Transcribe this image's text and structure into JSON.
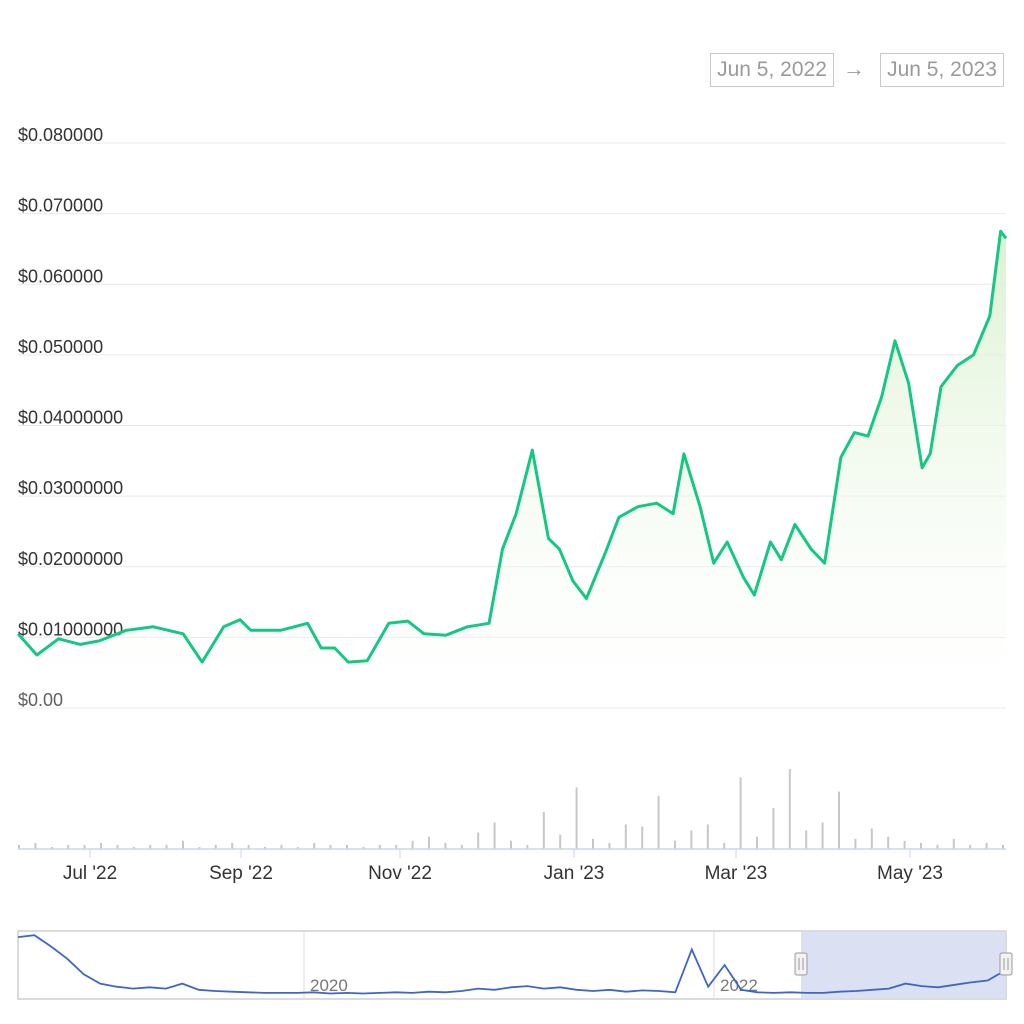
{
  "date_range": {
    "from": "Jun 5, 2022",
    "arrow": "→",
    "to": "Jun 5, 2023"
  },
  "colors": {
    "line": "#16c784",
    "fill": "#e6f6df",
    "navigator_line": "#3f66c5",
    "navigator_mask": "#d5dcf1",
    "grid": "#e9e9e9",
    "volume": "#c7c7c7"
  },
  "chart_data": {
    "type": "line",
    "ylim": [
      0,
      0.08
    ],
    "x_ticks": [
      "Jul '22",
      "Sep '22",
      "Nov '22",
      "Jan '23",
      "Mar '23",
      "May '23"
    ],
    "y_ticks": [
      {
        "value": 0.0,
        "label": "$0.00"
      },
      {
        "value": 0.01,
        "label": "$0.01000000"
      },
      {
        "value": 0.02,
        "label": "$0.02000000"
      },
      {
        "value": 0.03,
        "label": "$0.03000000"
      },
      {
        "value": 0.04,
        "label": "$0.04000000"
      },
      {
        "value": 0.05,
        "label": "$0.050000"
      },
      {
        "value": 0.06,
        "label": "$0.060000"
      },
      {
        "value": 0.07,
        "label": "$0.070000"
      },
      {
        "value": 0.08,
        "label": "$0.080000"
      }
    ],
    "series": [
      {
        "x": [
          "2022-06-05",
          "2022-06-12",
          "2022-06-20",
          "2022-06-28",
          "2022-07-05",
          "2022-07-15",
          "2022-07-25",
          "2022-08-05",
          "2022-08-12",
          "2022-08-20",
          "2022-08-26",
          "2022-08-30",
          "2022-09-10",
          "2022-09-20",
          "2022-09-25",
          "2022-09-30",
          "2022-10-05",
          "2022-10-12",
          "2022-10-20",
          "2022-10-27",
          "2022-11-02",
          "2022-11-10",
          "2022-11-18",
          "2022-11-26",
          "2022-12-01",
          "2022-12-06",
          "2022-12-12",
          "2022-12-18",
          "2022-12-22",
          "2022-12-27",
          "2023-01-01",
          "2023-01-08",
          "2023-01-13",
          "2023-01-20",
          "2023-01-27",
          "2023-02-02",
          "2023-02-06",
          "2023-02-12",
          "2023-02-17",
          "2023-02-22",
          "2023-02-28",
          "2023-03-04",
          "2023-03-10",
          "2023-03-14",
          "2023-03-19",
          "2023-03-25",
          "2023-03-30",
          "2023-04-05",
          "2023-04-10",
          "2023-04-15",
          "2023-04-20",
          "2023-04-25",
          "2023-04-30",
          "2023-05-05",
          "2023-05-08",
          "2023-05-12",
          "2023-05-18",
          "2023-05-24",
          "2023-05-30",
          "2023-06-03",
          "2023-06-05"
        ],
        "y": [
          0.0105,
          0.0075,
          0.0098,
          0.009,
          0.0095,
          0.011,
          0.0115,
          0.0105,
          0.0065,
          0.0115,
          0.0125,
          0.011,
          0.011,
          0.012,
          0.0085,
          0.0085,
          0.0065,
          0.0067,
          0.012,
          0.0123,
          0.0105,
          0.0103,
          0.0115,
          0.012,
          0.0225,
          0.0275,
          0.0365,
          0.024,
          0.0225,
          0.018,
          0.0155,
          0.022,
          0.027,
          0.0285,
          0.029,
          0.0275,
          0.036,
          0.0285,
          0.0205,
          0.0235,
          0.0185,
          0.016,
          0.0235,
          0.021,
          0.026,
          0.0225,
          0.0205,
          0.0355,
          0.039,
          0.0385,
          0.044,
          0.052,
          0.046,
          0.034,
          0.036,
          0.0455,
          0.0485,
          0.05,
          0.0555,
          0.0675,
          0.0665
        ]
      }
    ],
    "volume": [
      2,
      3,
      1,
      2,
      2,
      3,
      2,
      1,
      2,
      2,
      4,
      1,
      2,
      3,
      2,
      1,
      2,
      1,
      3,
      2,
      2,
      1,
      2,
      2,
      4,
      6,
      3,
      2,
      8,
      13,
      4,
      2,
      18,
      7,
      30,
      5,
      3,
      12,
      11,
      26,
      4,
      9,
      12,
      3,
      35,
      6,
      20,
      39,
      9,
      13,
      28,
      5,
      10,
      6,
      4,
      3,
      2,
      5,
      2,
      3,
      2
    ],
    "navigator": {
      "labels": [
        "2020",
        "2022"
      ],
      "values": [
        0.95,
        0.98,
        0.8,
        0.6,
        0.35,
        0.2,
        0.15,
        0.12,
        0.14,
        0.12,
        0.2,
        0.1,
        0.08,
        0.07,
        0.06,
        0.05,
        0.05,
        0.05,
        0.06,
        0.04,
        0.05,
        0.04,
        0.05,
        0.06,
        0.05,
        0.07,
        0.06,
        0.08,
        0.12,
        0.1,
        0.14,
        0.16,
        0.12,
        0.14,
        0.1,
        0.08,
        0.1,
        0.07,
        0.09,
        0.08,
        0.06,
        0.75,
        0.15,
        0.5,
        0.1,
        0.06,
        0.05,
        0.06,
        0.05,
        0.05,
        0.07,
        0.08,
        0.1,
        0.12,
        0.2,
        0.16,
        0.14,
        0.18,
        0.22,
        0.25,
        0.4
      ]
    }
  }
}
